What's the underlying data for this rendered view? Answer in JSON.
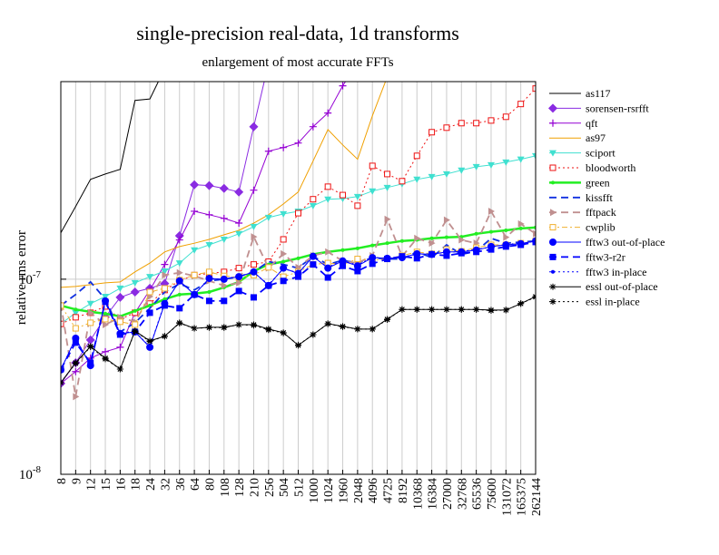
{
  "chart_data": {
    "type": "line",
    "title": "single-precision real-data, 1d transforms",
    "subtitle": "enlargement of most accurate FFTs",
    "y_label": "relative rms error",
    "log_y": true,
    "grid": true,
    "legend": "right",
    "categories": [
      "8",
      "9",
      "12",
      "15",
      "16",
      "18",
      "24",
      "32",
      "36",
      "64",
      "80",
      "108",
      "128",
      "210",
      "256",
      "504",
      "512",
      "1000",
      "1024",
      "1960",
      "2048",
      "4096",
      "4725",
      "8192",
      "10368",
      "16384",
      "27000",
      "32768",
      "65536",
      "75600",
      "131072",
      "165375",
      "262144"
    ],
    "ylim": [
      1e-08,
      1.03e-06
    ],
    "yticks": [
      {
        "value": 1e-08,
        "label": "10",
        "exponent": "-8"
      },
      {
        "value": 1e-07,
        "label": "10",
        "exponent": "-7"
      }
    ],
    "series": [
      {
        "name": "as117",
        "color": "#000000",
        "marker": "none",
        "dash": "solid",
        "values": [
          1.73e-07,
          2.36e-07,
          3.25e-07,
          3.46e-07,
          3.66e-07,
          8.25e-07,
          8.4e-07,
          1.2e-06,
          null,
          null,
          null,
          null,
          null,
          null,
          null,
          null,
          null,
          null,
          null,
          null,
          null,
          null,
          null,
          null,
          null,
          null,
          null,
          null,
          null,
          null,
          null,
          null,
          null
        ]
      },
      {
        "name": "sorensen-rsrfft",
        "color": "#8a2be2",
        "marker": "diamond",
        "dash": "solid",
        "values": [
          2.92e-08,
          3.73e-08,
          4.88e-08,
          6.4e-08,
          8.07e-08,
          8.6e-08,
          8.98e-08,
          9.5e-08,
          1.67e-07,
          3.05e-07,
          3.02e-07,
          2.92e-07,
          2.8e-07,
          6.05e-07,
          1.28e-06,
          null,
          null,
          null,
          null,
          null,
          null,
          null,
          null,
          null,
          null,
          null,
          null,
          null,
          null,
          null,
          null,
          null,
          null
        ]
      },
      {
        "name": "qft",
        "color": "#9400d3",
        "marker": "plus",
        "dash": "solid",
        "values": [
          2.92e-08,
          3.36e-08,
          3.94e-08,
          4.25e-08,
          4.48e-08,
          6.73e-08,
          8.8e-08,
          1.19e-07,
          1.59e-07,
          2.23e-07,
          2.14e-07,
          2.05e-07,
          1.94e-07,
          2.86e-07,
          4.53e-07,
          4.73e-07,
          4.99e-07,
          6.05e-07,
          7.11e-07,
          9.8e-07,
          1.28e-06,
          null,
          null,
          null,
          null,
          null,
          null,
          null,
          null,
          null,
          null,
          null,
          null
        ]
      },
      {
        "name": "as97",
        "color": "#f0a000",
        "marker": "none",
        "dash": "solid",
        "values": [
          9.08e-08,
          9.18e-08,
          9.38e-08,
          9.58e-08,
          9.68e-08,
          1.09e-07,
          1.21e-07,
          1.38e-07,
          1.47e-07,
          1.53e-07,
          1.6e-07,
          1.69e-07,
          1.78e-07,
          1.94e-07,
          2.14e-07,
          2.43e-07,
          2.8e-07,
          4.03e-07,
          5.85e-07,
          4.88e-07,
          4.12e-07,
          6.88e-07,
          1.09e-06,
          null,
          null,
          null,
          null,
          null,
          null,
          null,
          null,
          null,
          null
        ]
      },
      {
        "name": "sciport",
        "color": "#40e0d0",
        "marker": "tri-down",
        "dash": "solid",
        "values": [
          5.9e-08,
          6.73e-08,
          7.5e-08,
          8.15e-08,
          8.98e-08,
          9.58e-08,
          1.03e-07,
          1.1e-07,
          1.21e-07,
          1.41e-07,
          1.5e-07,
          1.6e-07,
          1.71e-07,
          1.86e-07,
          2.07e-07,
          2.16e-07,
          2.23e-07,
          2.38e-07,
          2.57e-07,
          2.59e-07,
          2.65e-07,
          2.83e-07,
          2.95e-07,
          3.08e-07,
          3.25e-07,
          3.35e-07,
          3.46e-07,
          3.62e-07,
          3.77e-07,
          3.85e-07,
          3.98e-07,
          4.12e-07,
          4.29e-07
        ]
      },
      {
        "name": "bloodworth",
        "color": "#ee1111",
        "marker": "square-open",
        "dash": "dot",
        "values": [
          5.9e-08,
          6.38e-08,
          6.73e-08,
          7.25e-08,
          6.24e-08,
          6.73e-08,
          7.5e-08,
          8.8e-08,
          9.8e-08,
          1.05e-07,
          1.07e-07,
          1.09e-07,
          1.14e-07,
          1.19e-07,
          1.23e-07,
          1.6e-07,
          2.18e-07,
          2.57e-07,
          2.98e-07,
          2.7e-07,
          2.38e-07,
          3.81e-07,
          3.46e-07,
          3.18e-07,
          4.29e-07,
          5.67e-07,
          5.98e-07,
          6.31e-07,
          6.31e-07,
          6.51e-07,
          6.8e-07,
          7.91e-07,
          9.49e-07
        ]
      },
      {
        "name": "green",
        "color": "#22ee22",
        "marker": "dot",
        "dash": "thick",
        "values": [
          7.33e-08,
          7e-08,
          6.8e-08,
          6.66e-08,
          6.45e-08,
          6.88e-08,
          7.33e-08,
          7.9e-08,
          8.34e-08,
          8.43e-08,
          8.6e-08,
          9.08e-08,
          9.68e-08,
          1.1e-07,
          1.19e-07,
          1.23e-07,
          1.28e-07,
          1.34e-07,
          1.38e-07,
          1.41e-07,
          1.44e-07,
          1.49e-07,
          1.53e-07,
          1.57e-07,
          1.59e-07,
          1.62e-07,
          1.64e-07,
          1.65e-07,
          1.71e-07,
          1.75e-07,
          1.78e-07,
          1.82e-07,
          1.84e-07
        ]
      },
      {
        "name": "kissfft",
        "color": "#1030e0",
        "marker": "none",
        "dash": "dash",
        "values": [
          7.33e-08,
          8.34e-08,
          9.68e-08,
          7.9e-08,
          5.37e-08,
          5.98e-08,
          7.1e-08,
          8.6e-08,
          9.48e-08,
          8.8e-08,
          9.8e-08,
          1e-07,
          1.03e-07,
          1.09e-07,
          1.23e-07,
          1.19e-07,
          1.14e-07,
          1.31e-07,
          1.19e-07,
          1.25e-07,
          1.21e-07,
          1.29e-07,
          1.27e-07,
          1.27e-07,
          1.38e-07,
          1.29e-07,
          1.5e-07,
          1.34e-07,
          1.39e-07,
          1.62e-07,
          1.53e-07,
          1.55e-07,
          1.57e-07
        ]
      },
      {
        "name": "fftpack",
        "color": "#c09090",
        "marker": "tri-right",
        "dash": "dash",
        "values": [
          7.5e-08,
          2.5e-08,
          6.73e-08,
          5.85e-08,
          6.38e-08,
          6.05e-08,
          8.15e-08,
          1.05e-07,
          1.08e-07,
          1.04e-07,
          9.8e-08,
          9.28e-08,
          9.58e-08,
          1.65e-07,
          1.14e-07,
          1.35e-07,
          1.15e-07,
          1.32e-07,
          1.38e-07,
          1.24e-07,
          1.21e-07,
          1.32e-07,
          2.03e-07,
          1.31e-07,
          1.62e-07,
          1.53e-07,
          2.01e-07,
          1.59e-07,
          1.53e-07,
          2.23e-07,
          1.64e-07,
          1.92e-07,
          1.71e-07
        ]
      },
      {
        "name": "cwplib",
        "color": "#f0b030",
        "marker": "square-open",
        "dash": "dashdot",
        "values": [
          7.33e-08,
          5.6e-08,
          5.98e-08,
          6.24e-08,
          6.05e-08,
          5.85e-08,
          8.6e-08,
          8.98e-08,
          9.9e-08,
          1.05e-07,
          1.09e-07,
          1.04e-07,
          1.02e-07,
          1.05e-07,
          1.15e-07,
          1.03e-07,
          1.09e-07,
          1.19e-07,
          1.21e-07,
          1.19e-07,
          1.27e-07,
          1.25e-07,
          1.27e-07,
          1.32e-07,
          1.38e-07,
          1.35e-07,
          1.42e-07,
          1.39e-07,
          1.45e-07,
          1.5e-07,
          1.5e-07,
          1.53e-07,
          1.57e-07
        ]
      },
      {
        "name": "fftw3 out-of-place",
        "color": "#0000ff",
        "marker": "circle",
        "dash": "solid",
        "values": [
          3.43e-08,
          4.98e-08,
          3.61e-08,
          7.74e-08,
          5.26e-08,
          5.37e-08,
          4.48e-08,
          7.5e-08,
          9.8e-08,
          8.34e-08,
          1.01e-07,
          1e-07,
          1.03e-07,
          1.09e-07,
          9.28e-08,
          1.14e-07,
          1.07e-07,
          1.31e-07,
          1.14e-07,
          1.24e-07,
          1.17e-07,
          1.29e-07,
          1.28e-07,
          1.29e-07,
          1.35e-07,
          1.34e-07,
          1.38e-07,
          1.38e-07,
          1.41e-07,
          1.47e-07,
          1.5e-07,
          1.52e-07,
          1.57e-07
        ]
      },
      {
        "name": "fftw3-r2r",
        "color": "#0000ff",
        "marker": "square",
        "dash": "dash",
        "values": [
          3.46e-08,
          4.73e-08,
          3.73e-08,
          7.66e-08,
          5.2e-08,
          5.37e-08,
          6.73e-08,
          7.33e-08,
          7.1e-08,
          8.34e-08,
          7.74e-08,
          7.74e-08,
          8.7e-08,
          8.07e-08,
          9.28e-08,
          9.8e-08,
          1.03e-07,
          1.19e-07,
          1.02e-07,
          1.17e-07,
          1.1e-07,
          1.2e-07,
          1.27e-07,
          1.31e-07,
          1.28e-07,
          1.34e-07,
          1.32e-07,
          1.36e-07,
          1.38e-07,
          1.42e-07,
          1.47e-07,
          1.5e-07,
          1.55e-07
        ]
      },
      {
        "name": "fftw3 in-place",
        "color": "#0000ff",
        "marker": "dot",
        "dash": "dot",
        "values": [
          3.43e-08,
          5e-08,
          3.6e-08,
          7.8e-08,
          5.3e-08,
          5.4e-08,
          4.5e-08,
          7.6e-08,
          9.7e-08,
          8.4e-08,
          1e-07,
          1e-07,
          1.04e-07,
          1.08e-07,
          9.4e-08,
          1.13e-07,
          1.08e-07,
          1.3e-07,
          1.15e-07,
          1.25e-07,
          1.18e-07,
          1.3e-07,
          1.27e-07,
          1.3e-07,
          1.34e-07,
          1.35e-07,
          1.37e-07,
          1.39e-07,
          1.42e-07,
          1.46e-07,
          1.51e-07,
          1.53e-07,
          1.56e-07
        ]
      },
      {
        "name": "essl out-of-place",
        "color": "#000000",
        "marker": "star",
        "dash": "solid",
        "values": [
          2.95e-08,
          3.73e-08,
          4.53e-08,
          3.94e-08,
          3.46e-08,
          5.43e-08,
          4.83e-08,
          5.1e-08,
          5.98e-08,
          5.6e-08,
          5.67e-08,
          5.67e-08,
          5.85e-08,
          5.85e-08,
          5.55e-08,
          5.32e-08,
          4.58e-08,
          5.2e-08,
          5.92e-08,
          5.73e-08,
          5.55e-08,
          5.55e-08,
          6.24e-08,
          7e-08,
          7e-08,
          7e-08,
          7e-08,
          7e-08,
          7e-08,
          6.95e-08,
          6.95e-08,
          7.5e-08,
          8.15e-08
        ]
      },
      {
        "name": "essl in-place",
        "color": "#000000",
        "marker": "star",
        "dash": "dot",
        "values": [
          2.95e-08,
          3.7e-08,
          4.5e-08,
          3.9e-08,
          3.46e-08,
          5.4e-08,
          4.8e-08,
          5.1e-08,
          5.95e-08,
          5.6e-08,
          5.65e-08,
          5.65e-08,
          5.85e-08,
          5.8e-08,
          5.5e-08,
          5.3e-08,
          4.6e-08,
          5.2e-08,
          5.9e-08,
          5.7e-08,
          5.55e-08,
          5.55e-08,
          6.2e-08,
          7e-08,
          7e-08,
          7e-08,
          7e-08,
          7e-08,
          7e-08,
          6.9e-08,
          6.95e-08,
          7.5e-08,
          8.1e-08
        ]
      }
    ]
  }
}
